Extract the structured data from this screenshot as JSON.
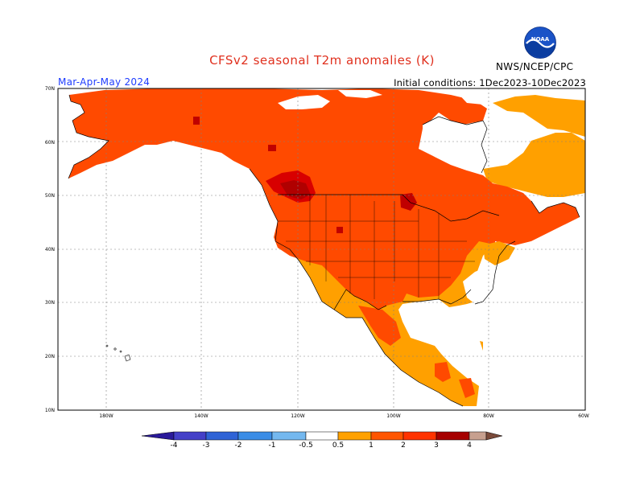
{
  "header": {
    "title": "CFSv2 seasonal T2m anomalies (K)",
    "period": "Mar-Apr-May 2024",
    "initial_conditions": "Initial conditions: 1Dec2023-10Dec2023",
    "agency": "NWS/NCEP/CPC",
    "logo_text": "NOAA"
  },
  "map": {
    "lat_labels": [
      "70N",
      "60N",
      "50N",
      "40N",
      "30N",
      "20N",
      "10N"
    ],
    "lon_labels": [
      "180W",
      "140W",
      "120W",
      "100W",
      "80W",
      "60W"
    ]
  },
  "colorbar": {
    "labels": [
      "-4",
      "-3",
      "-2",
      "-1",
      "-0.5",
      "0.5",
      "1",
      "2",
      "3",
      "4"
    ],
    "colors": [
      "#2a1a9a",
      "#4440c8",
      "#2f63d6",
      "#3b8de6",
      "#74b8ef",
      "#ffffff",
      "#ffa100",
      "#ff5500",
      "#ff3300",
      "#a60000",
      "#c7a08f",
      "#7a4a3a"
    ]
  },
  "colors": {
    "anomaly_0_5_to_1": "#ffa000",
    "anomaly_1_to_2": "#ff5a00",
    "anomaly_2_to_3": "#ff3300",
    "anomaly_3_to_4": "#a00000",
    "title_color": "#e0301e",
    "period_color": "#1e3cff",
    "grid_color": "#808080"
  }
}
